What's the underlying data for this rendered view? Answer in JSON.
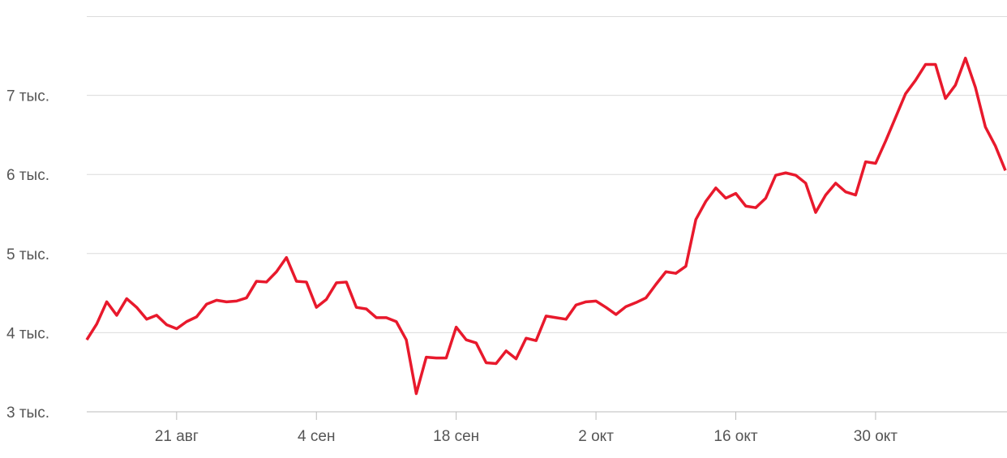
{
  "chart_data": {
    "type": "line",
    "categories": [
      null,
      null,
      null,
      null,
      null,
      null,
      null,
      null,
      null,
      "21 авг",
      null,
      null,
      null,
      null,
      null,
      null,
      null,
      null,
      null,
      null,
      null,
      null,
      null,
      "4 сен",
      null,
      null,
      null,
      null,
      null,
      null,
      null,
      null,
      null,
      null,
      null,
      null,
      null,
      "18 сен",
      null,
      null,
      null,
      null,
      null,
      null,
      null,
      null,
      null,
      null,
      null,
      null,
      null,
      "2 окт",
      null,
      null,
      null,
      null,
      null,
      null,
      null,
      null,
      null,
      null,
      null,
      null,
      null,
      "16 окт",
      null,
      null,
      null,
      null,
      null,
      null,
      null,
      null,
      null,
      null,
      null,
      null,
      null,
      "30 окт",
      null,
      null,
      null,
      null,
      null,
      null,
      null,
      null,
      null,
      null,
      null,
      null,
      null
    ],
    "series": [
      {
        "color": "#e8192c",
        "values": [
          3910,
          4110,
          4390,
          4220,
          4430,
          4320,
          4170,
          4220,
          4100,
          4050,
          4140,
          4200,
          4360,
          4410,
          4390,
          4400,
          4440,
          4650,
          4640,
          4770,
          4950,
          4650,
          4640,
          4320,
          4420,
          4630,
          4640,
          4320,
          4300,
          4190,
          4190,
          4140,
          3910,
          3230,
          3690,
          3680,
          3680,
          4070,
          3910,
          3870,
          3620,
          3610,
          3770,
          3670,
          3930,
          3900,
          4210,
          4190,
          4170,
          4350,
          4390,
          4400,
          4320,
          4230,
          4330,
          4380,
          4440,
          4610,
          4770,
          4750,
          4840,
          5430,
          5660,
          5830,
          5700,
          5760,
          5600,
          5580,
          5700,
          5990,
          6020,
          5990,
          5890,
          5520,
          5740,
          5890,
          5780,
          5740,
          6160,
          6140,
          6420,
          6720,
          7020,
          7190,
          7390,
          7390,
          6960,
          7130,
          7470,
          7100,
          6600,
          6360,
          6050
        ]
      }
    ],
    "ylim": [
      3000,
      8000
    ],
    "yticks": [
      {
        "value": 3000,
        "label": "3 тыс."
      },
      {
        "value": 4000,
        "label": "4 тыс."
      },
      {
        "value": 5000,
        "label": "5 тыс."
      },
      {
        "value": 6000,
        "label": "6 тыс."
      },
      {
        "value": 7000,
        "label": "7 тыс."
      }
    ],
    "grid": true
  }
}
